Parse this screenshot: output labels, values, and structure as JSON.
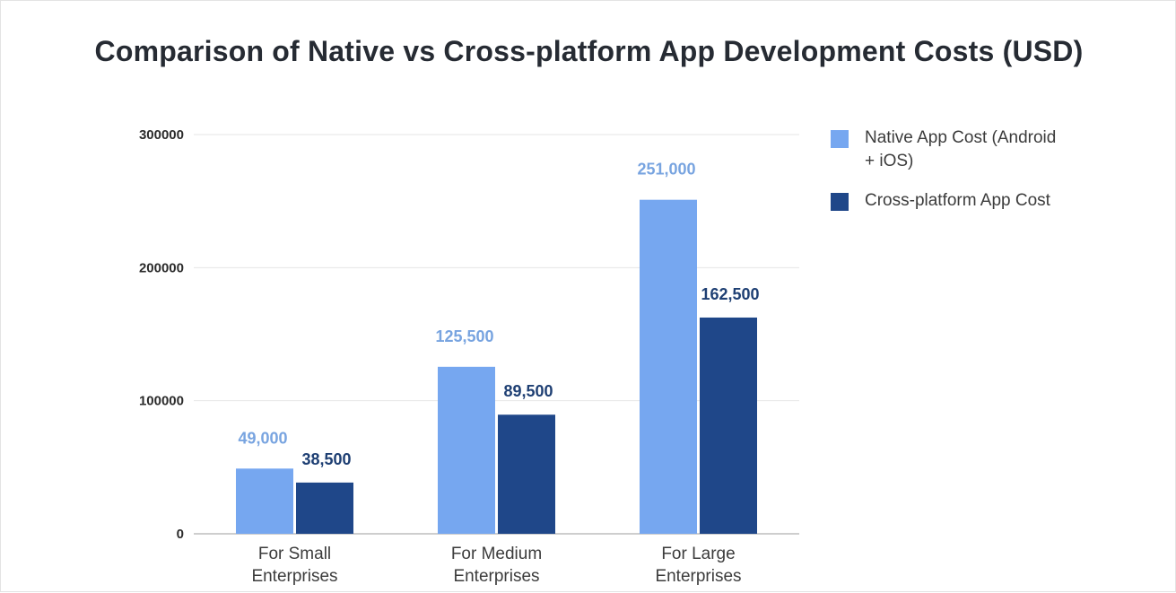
{
  "chart_data": {
    "type": "bar",
    "title": "Comparison of Native vs Cross-platform App Development Costs (USD)",
    "categories": [
      "For Small Enterprises",
      "For Medium Enterprises",
      "For Large Enterprises"
    ],
    "category_lines": [
      [
        "For Small",
        "Enterprises"
      ],
      [
        "For Medium",
        "Enterprises"
      ],
      [
        "For Large",
        "Enterprises"
      ]
    ],
    "series": [
      {
        "name": "Native App Cost (Android + iOS)",
        "legend_lines": [
          "Native App Cost (Android",
          "+ iOS)"
        ],
        "values": [
          49000,
          125500,
          251000
        ],
        "data_labels": [
          "49,000",
          "125,500",
          "251,000"
        ],
        "color": "#76a7f0",
        "label_color": "#78a4e0"
      },
      {
        "name": "Cross-platform App Cost",
        "legend_lines": [
          "Cross-platform App Cost"
        ],
        "values": [
          38500,
          89500,
          162500
        ],
        "data_labels": [
          "38,500",
          "89,500",
          "162,500"
        ],
        "color": "#1f4789",
        "label_color": "#1e3f73"
      }
    ],
    "yticks": [
      0,
      100000,
      200000,
      300000
    ],
    "ytick_labels": [
      "0",
      "100000",
      "200000",
      "300000"
    ],
    "ylim": [
      0,
      300000
    ],
    "xlabel": "",
    "ylabel": "",
    "grid": true,
    "legend_position": "right"
  }
}
